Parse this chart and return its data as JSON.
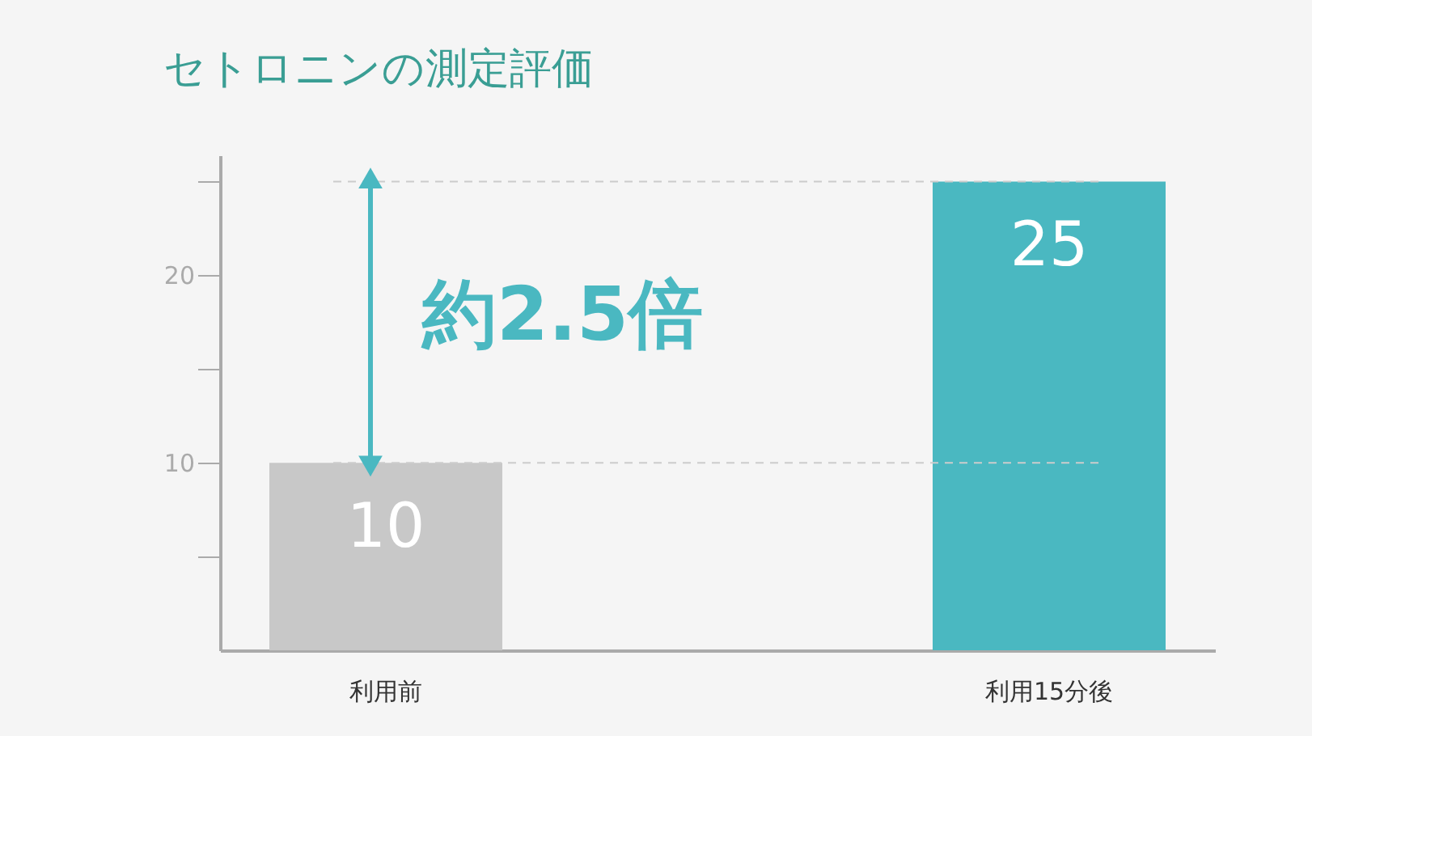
{
  "chart_data": {
    "type": "bar",
    "title": "セトロニンの測定評価",
    "categories": [
      "利用前",
      "利用15分後"
    ],
    "values": [
      10,
      25
    ],
    "colors": [
      "#c8c8c8",
      "#4ab8c1"
    ],
    "ylim": [
      0,
      26.4
    ],
    "yticks": [
      {
        "value": 5,
        "label": null
      },
      10,
      {
        "value": 15,
        "label": null
      },
      20,
      {
        "value": 25,
        "label": null
      }
    ],
    "grid": false,
    "data_labels": true,
    "ref_lines": [
      {
        "axis": "y",
        "value": 10,
        "label": null,
        "color": "#cccccc",
        "line_style": "dashed"
      },
      {
        "axis": "y",
        "value": 25,
        "label": null,
        "color": "#cccccc",
        "line_style": "dashed"
      }
    ],
    "annotations": [
      "約2.5倍"
    ]
  }
}
